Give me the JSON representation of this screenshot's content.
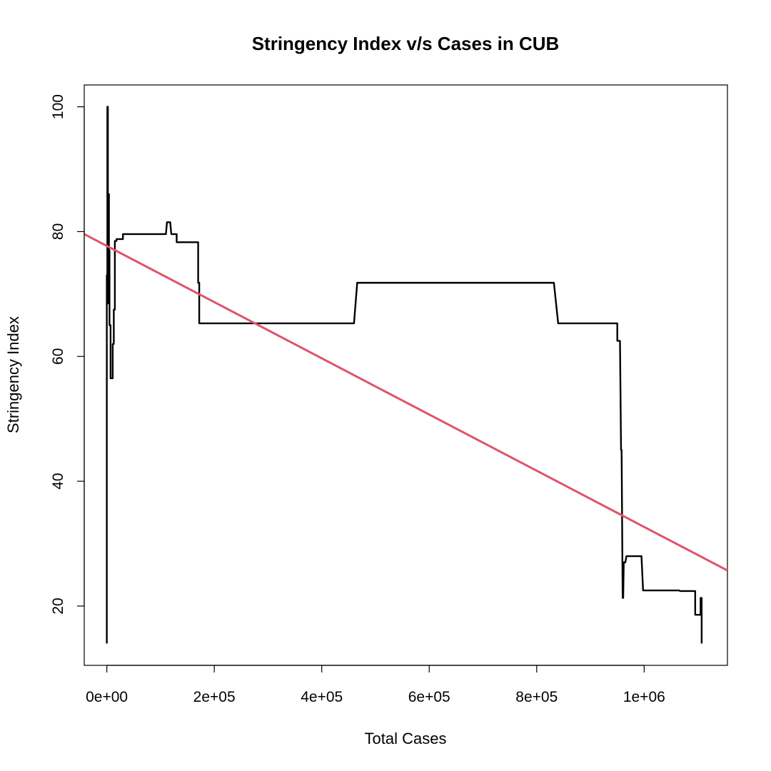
{
  "chart_data": {
    "type": "line",
    "title": "Stringency Index v/s Cases in CUB",
    "xlabel": "Total Cases",
    "ylabel": "Stringency Index",
    "xlim": [
      -42000,
      1155000
    ],
    "ylim": [
      10.5,
      103.5
    ],
    "x_ticks": [
      {
        "value": 0,
        "label": "0e+00"
      },
      {
        "value": 200000,
        "label": "2e+05"
      },
      {
        "value": 400000,
        "label": "4e+05"
      },
      {
        "value": 600000,
        "label": "6e+05"
      },
      {
        "value": 800000,
        "label": "8e+05"
      },
      {
        "value": 1000000,
        "label": "1e+06"
      }
    ],
    "y_ticks": [
      {
        "value": 20,
        "label": "20"
      },
      {
        "value": 40,
        "label": "40"
      },
      {
        "value": 60,
        "label": "60"
      },
      {
        "value": 80,
        "label": "80"
      },
      {
        "value": 100,
        "label": "100"
      }
    ],
    "grid": false,
    "legend": "none",
    "series": [
      {
        "color": "#000000",
        "points": [
          [
            0,
            14
          ],
          [
            0,
            73
          ],
          [
            1000,
            73
          ],
          [
            1000,
            100
          ],
          [
            2000,
            100
          ],
          [
            2000,
            68.5
          ],
          [
            3000,
            68.5
          ],
          [
            3000,
            86
          ],
          [
            4000,
            86
          ],
          [
            4000,
            77
          ],
          [
            5000,
            77
          ],
          [
            5000,
            65
          ],
          [
            7000,
            65
          ],
          [
            7000,
            56.5
          ],
          [
            11000,
            56.5
          ],
          [
            11000,
            62
          ],
          [
            13000,
            62
          ],
          [
            13000,
            67.5
          ],
          [
            15000,
            67.5
          ],
          [
            15000,
            78.5
          ],
          [
            18000,
            78.5
          ],
          [
            18000,
            78.8
          ],
          [
            30000,
            78.8
          ],
          [
            30000,
            79.6
          ],
          [
            110000,
            79.6
          ],
          [
            112000,
            81.5
          ],
          [
            118000,
            81.5
          ],
          [
            120000,
            79.6
          ],
          [
            130000,
            79.6
          ],
          [
            130000,
            78.3
          ],
          [
            170000,
            78.3
          ],
          [
            170000,
            71.8
          ],
          [
            172000,
            71.8
          ],
          [
            172000,
            65.3
          ],
          [
            460000,
            65.3
          ],
          [
            466000,
            71.8
          ],
          [
            832000,
            71.8
          ],
          [
            840000,
            65.3
          ],
          [
            950000,
            65.3
          ],
          [
            950000,
            62.5
          ],
          [
            955000,
            62.5
          ],
          [
            957000,
            45
          ],
          [
            958000,
            45
          ],
          [
            960000,
            21.3
          ],
          [
            961000,
            21.3
          ],
          [
            962000,
            27
          ],
          [
            965000,
            27
          ],
          [
            967000,
            28
          ],
          [
            995000,
            28
          ],
          [
            998000,
            22.5
          ],
          [
            1065000,
            22.5
          ],
          [
            1067000,
            22.4
          ],
          [
            1095000,
            22.4
          ],
          [
            1095000,
            18.6
          ],
          [
            1105000,
            18.6
          ],
          [
            1105000,
            21.3
          ],
          [
            1107000,
            21.3
          ],
          [
            1107000,
            14
          ]
        ]
      },
      {
        "color": "#DF536B",
        "points": [
          [
            -42000,
            79.6
          ],
          [
            1155000,
            25.7
          ]
        ]
      }
    ]
  }
}
